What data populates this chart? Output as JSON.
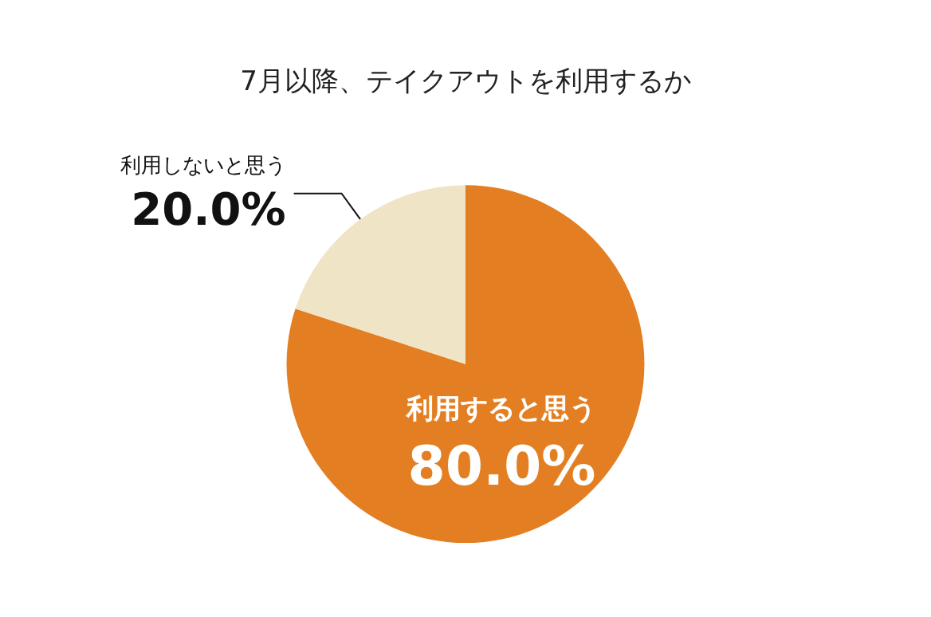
{
  "chart_data": {
    "type": "pie",
    "title": "7月以降、テイクアウトを利用するか",
    "categories": [
      "利用すると思う",
      "利用しないと思う"
    ],
    "values": [
      80.0,
      20.0
    ],
    "colors": [
      "#e37f22",
      "#efe4c6"
    ],
    "value_labels": [
      "80.0%",
      "20.0%"
    ],
    "legend": false
  }
}
